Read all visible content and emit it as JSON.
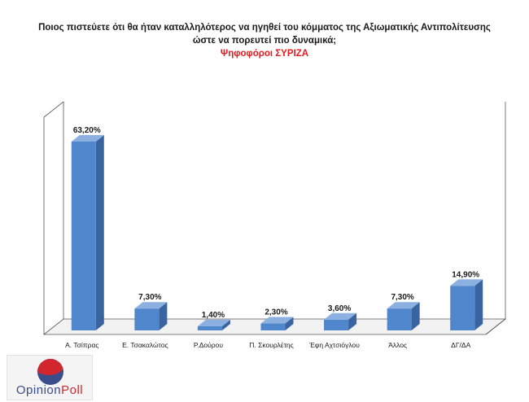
{
  "header": {
    "title_line1": "Ποιος πιστεύετε ότι θα ήταν καταλληλότερος  να ηγηθεί του κόμματος της Αξιωματικής Αντιπολίτευσης",
    "title_line2": "ώστε να πορευτεί πιο δυναμικά;",
    "subtitle": "Ψηφοφόροι ΣΥΡΙΖΑ"
  },
  "logo": {
    "text_a": "Opinion",
    "text_b": "Poll"
  },
  "colors": {
    "bar_front": "#4f86cc",
    "bar_side": "#3a64a0",
    "bar_top": "#8cb0e0",
    "subtitle": "#e8191c"
  },
  "chart_data": {
    "type": "bar",
    "categories": [
      "Α. Τσίπρας",
      "Ε. Τσακαλώτος",
      "Ρ.Δούρου",
      "Π. Σκουρλέτης",
      "Έφη Αχτσιόγλου",
      "Άλλος",
      "ΔΓ/ΔΑ"
    ],
    "values": [
      63.2,
      7.3,
      1.4,
      2.3,
      3.6,
      7.3,
      14.9
    ],
    "data_labels": [
      "63,20%",
      "7,30%",
      "1,40%",
      "2,30%",
      "3,60%",
      "7,30%",
      "14,90%"
    ],
    "title": "Ποιος πιστεύετε ότι θα ήταν καταλληλότερος  να ηγηθεί του κόμματος της Αξιωματικής Αντιπολίτευσης ώστε να πορευτεί πιο δυναμικά;",
    "subtitle": "Ψηφοφόροι ΣΥΡΙΖΑ",
    "xlabel": "",
    "ylabel": "",
    "ylim": [
      0,
      70
    ],
    "grid": false,
    "legend": "none"
  }
}
